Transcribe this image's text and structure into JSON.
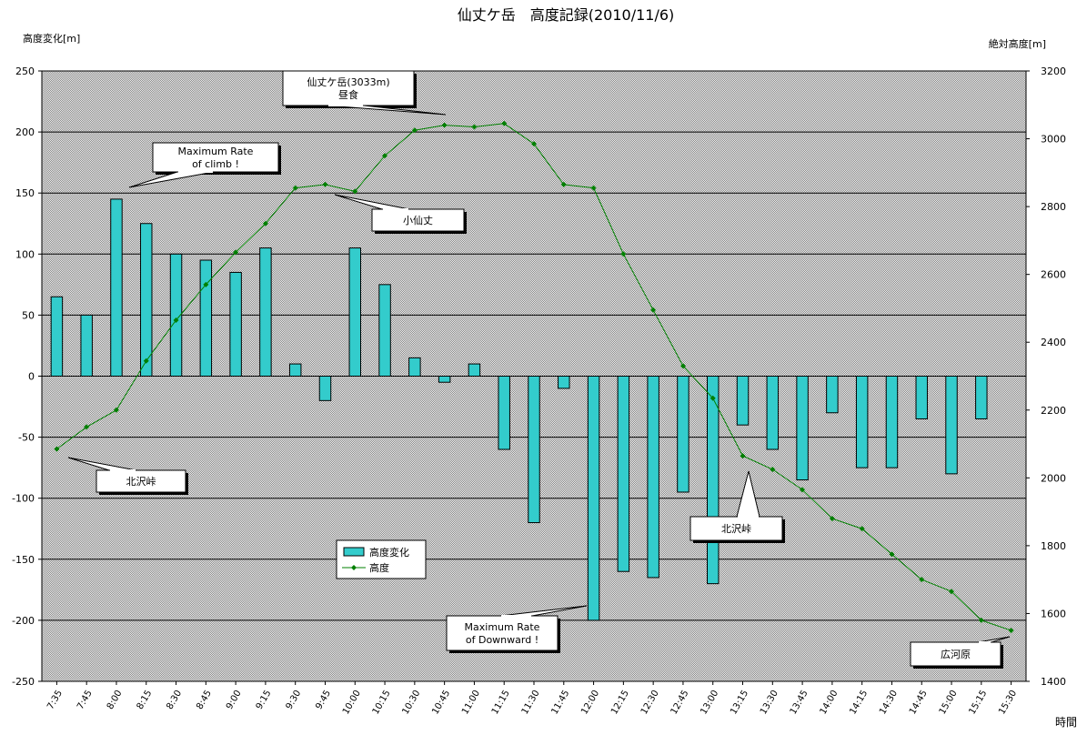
{
  "chart_data": {
    "type": "bar",
    "title": "仙丈ケ岳　高度記録(2010/11/6)",
    "ylabel": "高度変化[m]",
    "y2label": "絶対高度[m]",
    "xlabel": "時間",
    "ylim": [
      -250,
      250
    ],
    "y2lim": [
      1400,
      3200
    ],
    "yticks": [
      250,
      200,
      150,
      100,
      50,
      0,
      -50,
      -100,
      -150,
      -200,
      -250
    ],
    "y2ticks": [
      3200,
      3000,
      2800,
      2600,
      2400,
      2200,
      2000,
      1800,
      1600,
      1400
    ],
    "grid": true,
    "legend_position": "center-left",
    "categories": [
      "7:35",
      "7:45",
      "8:00",
      "8:15",
      "8:30",
      "8:45",
      "9:00",
      "9:15",
      "9:30",
      "9:45",
      "10:00",
      "10:15",
      "10:30",
      "10:45",
      "11:00",
      "11:15",
      "11:30",
      "11:45",
      "12:00",
      "12:15",
      "12:30",
      "12:45",
      "13:00",
      "13:15",
      "13:30",
      "13:45",
      "14:00",
      "14:15",
      "14:30",
      "14:45",
      "15:00",
      "15:15",
      "15:30"
    ],
    "series": [
      {
        "name": "高度変化",
        "type": "bar",
        "axis": "left",
        "color": "#33cccc",
        "values": [
          65,
          50,
          145,
          125,
          100,
          95,
          85,
          105,
          10,
          -20,
          105,
          75,
          15,
          -5,
          10,
          -60,
          -120,
          -10,
          -200,
          -160,
          -165,
          -95,
          -170,
          -40,
          -60,
          -85,
          -30,
          -75,
          -75,
          -35,
          -80,
          -35,
          null
        ]
      },
      {
        "name": "高度",
        "type": "line",
        "axis": "right",
        "color": "#008000",
        "values": [
          2085,
          2150,
          2200,
          2345,
          2465,
          2570,
          2665,
          2750,
          2855,
          2865,
          2845,
          2950,
          3025,
          3040,
          3035,
          3045,
          2985,
          2865,
          2855,
          2660,
          2495,
          2330,
          2235,
          2065,
          2025,
          1965,
          1880,
          1850,
          1775,
          1700,
          1665,
          1580,
          1550
        ]
      }
    ],
    "annotations": [
      {
        "text": "北沢峠",
        "index": 0,
        "on": "line"
      },
      {
        "text": "Maximum Rate\nof climb !",
        "index": 2,
        "on": "bar"
      },
      {
        "text": "仙丈ケ岳(3033m)\n昼食",
        "index": 13,
        "on": "line"
      },
      {
        "text": "小仙丈",
        "index": 9,
        "on": "line"
      },
      {
        "text": "北沢峠",
        "index": 23,
        "on": "line"
      },
      {
        "text": "Maximum Rate\nof Downward !",
        "index": 18,
        "on": "bar"
      },
      {
        "text": "広河原",
        "index": 32,
        "on": "line"
      }
    ]
  }
}
